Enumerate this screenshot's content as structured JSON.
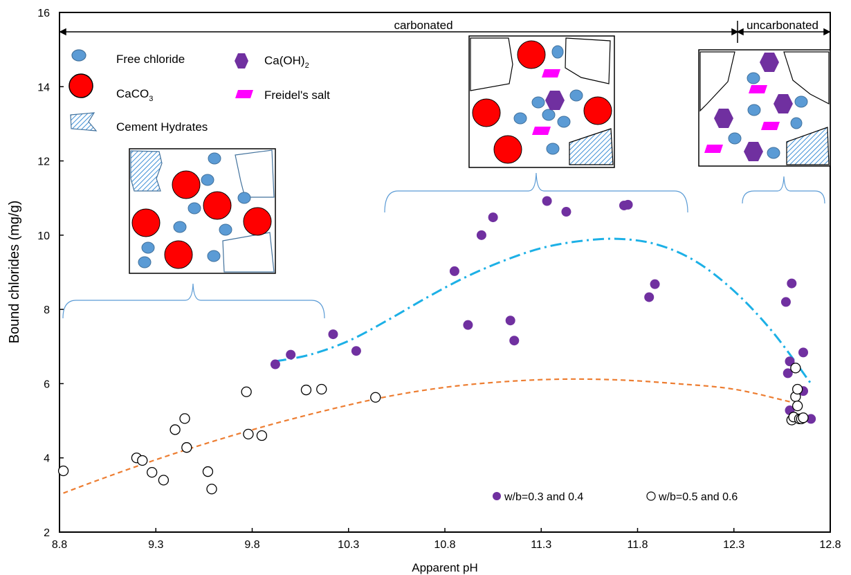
{
  "chart_data": {
    "type": "scatter",
    "xlabel": "Apparent pH",
    "ylabel": "Bound chlorides (mg/g)",
    "xlim": [
      8.8,
      12.8
    ],
    "ylim": [
      2,
      16
    ],
    "xticks": [
      "8.8",
      "9.3",
      "9.8",
      "10.3",
      "10.8",
      "11.3",
      "11.8",
      "12.3",
      "12.8"
    ],
    "yticks": [
      "2",
      "4",
      "6",
      "8",
      "10",
      "12",
      "14",
      "16"
    ],
    "grid": false,
    "legend_position": "bottom-right",
    "series": [
      {
        "name": "w/b=0.3 and 0.4",
        "color": "#7030a0",
        "marker": "filled-circle",
        "x": [
          9.92,
          10.0,
          10.22,
          10.34,
          10.85,
          10.92,
          10.99,
          11.05,
          11.14,
          11.16,
          11.33,
          11.43,
          11.73,
          11.75,
          11.86,
          11.89,
          12.57,
          12.58,
          12.59,
          12.6,
          12.59,
          12.66,
          12.66,
          12.7
        ],
        "y": [
          6.52,
          6.78,
          7.33,
          6.88,
          9.03,
          7.58,
          10.0,
          10.48,
          7.7,
          7.16,
          10.92,
          10.63,
          10.8,
          10.82,
          8.33,
          8.68,
          8.2,
          6.28,
          6.6,
          8.7,
          5.28,
          6.84,
          5.8,
          5.05
        ]
      },
      {
        "name": "w/b=0.5 and 0.6",
        "color": "#000000",
        "marker": "open-circle",
        "x": [
          8.82,
          9.2,
          9.23,
          9.28,
          9.34,
          9.4,
          9.45,
          9.46,
          9.57,
          9.59,
          9.77,
          9.78,
          9.85,
          10.08,
          10.16,
          10.44,
          12.6,
          12.61,
          12.62,
          12.62,
          12.63,
          12.63,
          12.64,
          12.65,
          12.66
        ],
        "y": [
          3.65,
          4.0,
          3.93,
          3.61,
          3.4,
          4.76,
          5.06,
          4.28,
          3.63,
          3.16,
          5.78,
          4.64,
          4.6,
          5.83,
          5.85,
          5.63,
          5.02,
          5.1,
          5.65,
          6.42,
          5.85,
          5.4,
          5.05,
          5.05,
          5.08
        ]
      }
    ],
    "trendlines": [
      {
        "series": "w/b=0.3 and 0.4",
        "style": "dash-dot",
        "color": "#1cb0e6",
        "x": [
          9.92,
          10.1,
          10.3,
          10.5,
          10.7,
          10.9,
          11.1,
          11.3,
          11.5,
          11.7,
          11.9,
          12.1,
          12.3,
          12.5,
          12.7
        ],
        "y": [
          6.6,
          6.78,
          7.15,
          7.7,
          8.3,
          8.85,
          9.3,
          9.65,
          9.84,
          9.9,
          9.75,
          9.3,
          8.5,
          7.4,
          6.0
        ]
      },
      {
        "series": "w/b=0.5 and 0.6",
        "style": "dashed",
        "color": "#ed7d31",
        "x": [
          8.82,
          9.0,
          9.3,
          9.6,
          9.9,
          10.2,
          10.5,
          10.8,
          11.1,
          11.4,
          11.7,
          12.0,
          12.3,
          12.6
        ],
        "y": [
          3.05,
          3.4,
          3.95,
          4.45,
          4.9,
          5.3,
          5.65,
          5.9,
          6.05,
          6.12,
          6.1,
          6.0,
          5.85,
          5.5
        ]
      }
    ],
    "annotations": {
      "carbonated": "carbonated",
      "uncarbonated": "uncarbonated",
      "legend_free_chloride": "Free chloride",
      "legend_caoh2": "Ca(OH)",
      "legend_caoh2_sub": "2",
      "legend_caco3": "CaCO",
      "legend_caco3_sub": "3",
      "legend_friedels": "Freidel's salt",
      "legend_cement": "Cement Hydrates"
    }
  }
}
